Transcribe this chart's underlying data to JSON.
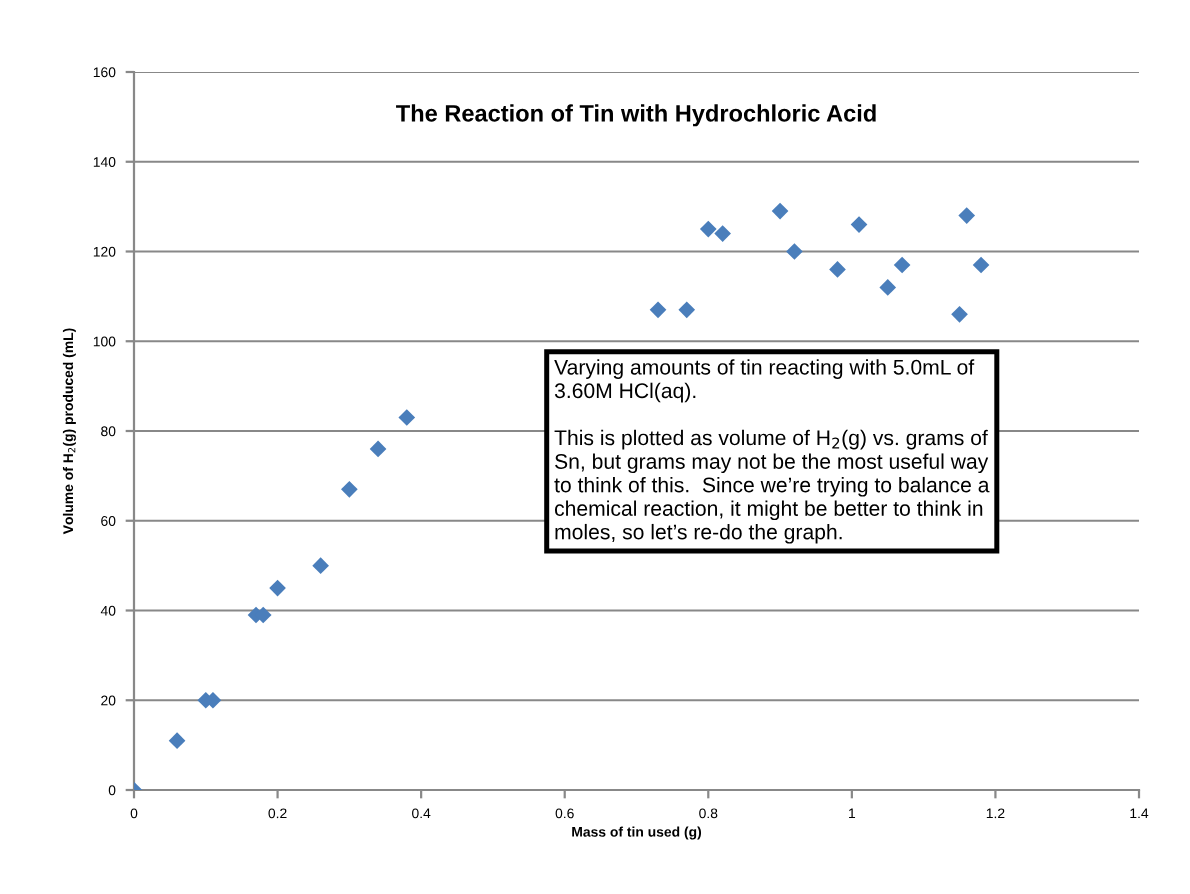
{
  "chart_data": {
    "type": "scatter",
    "title": "The Reaction of Tin with Hydrochloric Acid",
    "xlabel": "Mass of tin used (g)",
    "ylabel": "Volume of H$_{2}$(g) produced (mL)",
    "x": [
      0,
      0.06,
      0.1,
      0.11,
      0.17,
      0.18,
      0.2,
      0.26,
      0.3,
      0.34,
      0.38,
      0.73,
      0.77,
      0.8,
      0.82,
      0.9,
      0.92,
      0.98,
      1.01,
      1.05,
      1.07,
      1.15,
      1.16,
      1.18
    ],
    "series": [
      {
        "color": "#4a7ebb",
        "values": [
          0,
          11,
          20,
          20,
          39,
          39,
          45,
          50,
          67,
          76,
          83,
          107,
          107,
          125,
          124,
          129,
          120,
          116,
          126,
          112,
          117,
          106,
          128,
          117
        ]
      }
    ],
    "xlim": [
      0,
      1.4
    ],
    "xticks": [
      0,
      0.2,
      0.4,
      0.6,
      0.8,
      1,
      1.2,
      1.4
    ],
    "ylim": [
      0,
      160
    ],
    "yticks": [
      0,
      20,
      40,
      60,
      80,
      100,
      120,
      140,
      160
    ],
    "grid": "y",
    "marker": "diamond",
    "legend": false,
    "annotations": [
      "Varying amounts of tin reacting with 5.0mL of\n3.60M HCl(aq).\n\nThis is plotted as volume of H$_{2}$(g) vs. grams of\nSn, but grams may not be the most useful way\nto think of this.  Since we’re trying to balance a\nchemical reaction, it might be better to think in\nmoles, so let’s re-do the graph."
    ]
  }
}
